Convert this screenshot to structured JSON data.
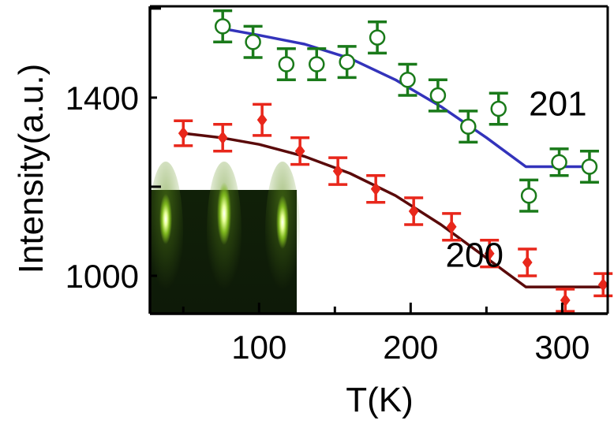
{
  "chart_data": {
    "type": "scatter",
    "xlabel": "T(K)",
    "ylabel": "Intensity(a.u.)",
    "xlim": [
      28,
      330
    ],
    "ylim": [
      915,
      1605
    ],
    "xticks": [
      100,
      200,
      300
    ],
    "yticks": [
      1000,
      1400
    ],
    "grid": false,
    "series": [
      {
        "name": "201",
        "marker": "open-circle",
        "color": "#1a7a1a",
        "x": [
          76,
          96,
          118,
          138,
          158,
          178,
          198,
          218,
          238,
          258,
          278,
          298,
          318
        ],
        "y": [
          1560,
          1525,
          1475,
          1475,
          1480,
          1535,
          1440,
          1405,
          1335,
          1375,
          1180,
          1255,
          1245
        ],
        "err": [
          35,
          35,
          35,
          35,
          35,
          35,
          35,
          35,
          35,
          35,
          35,
          30,
          35
        ]
      },
      {
        "name": "200",
        "marker": "filled-diamond",
        "color": "#e8271b",
        "x": [
          50,
          76,
          102,
          127,
          152,
          177,
          202,
          227,
          252,
          277,
          302,
          327
        ],
        "y": [
          1320,
          1310,
          1350,
          1280,
          1235,
          1195,
          1145,
          1110,
          1050,
          1030,
          945,
          980
        ],
        "err": [
          28,
          30,
          35,
          30,
          30,
          30,
          30,
          30,
          30,
          30,
          25,
          25
        ]
      }
    ],
    "fits": [
      {
        "color": "#3333bb",
        "x": [
          76,
          100,
          130,
          160,
          190,
          220,
          250,
          276,
          318
        ],
        "y": [
          1555,
          1540,
          1520,
          1488,
          1440,
          1380,
          1310,
          1245,
          1245
        ]
      },
      {
        "color": "#5a0a0a",
        "x": [
          50,
          75,
          100,
          130,
          160,
          190,
          220,
          250,
          276,
          327
        ],
        "y": [
          1320,
          1310,
          1295,
          1268,
          1230,
          1180,
          1115,
          1040,
          975,
          975
        ]
      }
    ],
    "labels": [
      {
        "text": "201",
        "x": 278,
        "y": 1360
      },
      {
        "text": "200",
        "x": 223,
        "y": 1020
      }
    ]
  }
}
